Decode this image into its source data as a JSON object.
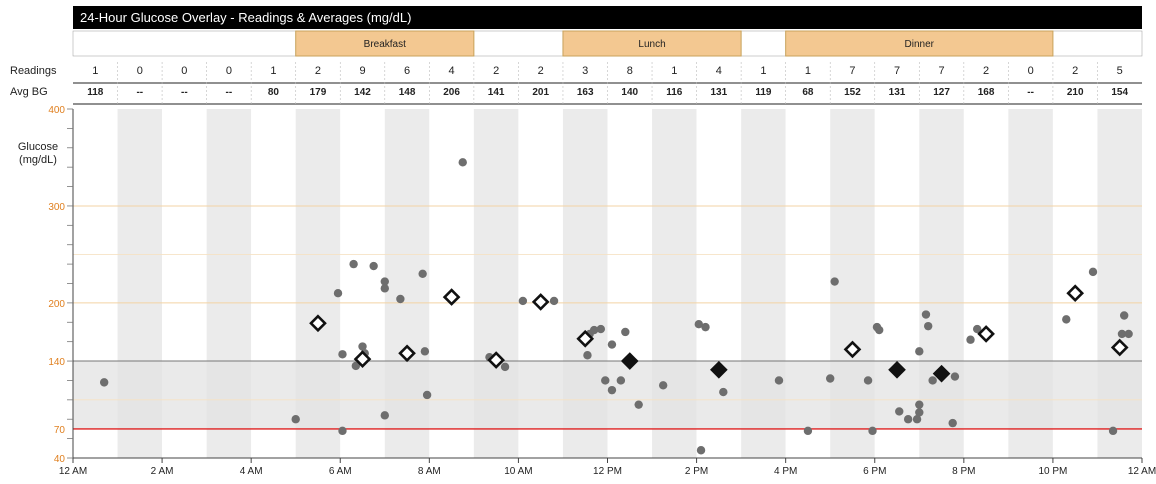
{
  "chart_data": {
    "type": "scatter",
    "title": "24-Hour Glucose Overlay - Readings & Averages (mg/dL)",
    "ylabel": [
      "Glucose",
      "(mg/dL)"
    ],
    "ylim": [
      40,
      400
    ],
    "xlim": [
      0,
      24
    ],
    "y_ticks": [
      "40",
      "70",
      "140",
      "200",
      "300",
      "400"
    ],
    "x_ticks": [
      {
        "hour": 0,
        "label": "12 AM"
      },
      {
        "hour": 2,
        "label": "2 AM"
      },
      {
        "hour": 4,
        "label": "4 AM"
      },
      {
        "hour": 6,
        "label": "6 AM"
      },
      {
        "hour": 8,
        "label": "8 AM"
      },
      {
        "hour": 10,
        "label": "10 AM"
      },
      {
        "hour": 12,
        "label": "12 PM"
      },
      {
        "hour": 14,
        "label": "2 PM"
      },
      {
        "hour": 16,
        "label": "4 PM"
      },
      {
        "hour": 18,
        "label": "6 PM"
      },
      {
        "hour": 20,
        "label": "8 PM"
      },
      {
        "hour": 22,
        "label": "10 PM"
      },
      {
        "hour": 24,
        "label": "12 AM"
      }
    ],
    "meals": [
      {
        "label": "Breakfast",
        "start": 5,
        "end": 9
      },
      {
        "label": "Lunch",
        "start": 11,
        "end": 15
      },
      {
        "label": "Dinner",
        "start": 16,
        "end": 22
      }
    ],
    "target_range": [
      70,
      140
    ],
    "low_threshold": 70,
    "reference_lines": [
      {
        "y": 200,
        "color": "#f3d3a4"
      },
      {
        "y": 300,
        "color": "#f3d3a4"
      }
    ],
    "row_labels": {
      "readings": "Readings",
      "avg_bg": "Avg BG"
    },
    "readings": [
      "1",
      "0",
      "0",
      "0",
      "1",
      "2",
      "9",
      "6",
      "4",
      "2",
      "2",
      "3",
      "8",
      "1",
      "4",
      "1",
      "1",
      "7",
      "7",
      "7",
      "2",
      "0",
      "2",
      "5"
    ],
    "avg_bg": [
      "118",
      "--",
      "--",
      "--",
      "80",
      "179",
      "142",
      "148",
      "206",
      "141",
      "201",
      "163",
      "140",
      "116",
      "131",
      "119",
      "68",
      "152",
      "131",
      "127",
      "168",
      "--",
      "210",
      "154"
    ],
    "averages": [
      {
        "x": 5.5,
        "y": 179
      },
      {
        "x": 6.5,
        "y": 142
      },
      {
        "x": 7.5,
        "y": 148
      },
      {
        "x": 8.5,
        "y": 206
      },
      {
        "x": 9.5,
        "y": 141
      },
      {
        "x": 10.5,
        "y": 201
      },
      {
        "x": 11.5,
        "y": 163
      },
      {
        "x": 12.5,
        "y": 140
      },
      {
        "x": 14.5,
        "y": 131
      },
      {
        "x": 17.5,
        "y": 152
      },
      {
        "x": 18.5,
        "y": 131
      },
      {
        "x": 19.5,
        "y": 127
      },
      {
        "x": 20.5,
        "y": 168
      },
      {
        "x": 22.5,
        "y": 210
      },
      {
        "x": 23.5,
        "y": 154
      }
    ],
    "readings_points": [
      {
        "x": 0.7,
        "y": 118
      },
      {
        "x": 5.0,
        "y": 80
      },
      {
        "x": 5.95,
        "y": 210
      },
      {
        "x": 6.05,
        "y": 147
      },
      {
        "x": 6.05,
        "y": 68
      },
      {
        "x": 6.3,
        "y": 240
      },
      {
        "x": 6.5,
        "y": 155
      },
      {
        "x": 6.55,
        "y": 148
      },
      {
        "x": 6.75,
        "y": 238
      },
      {
        "x": 6.35,
        "y": 135
      },
      {
        "x": 7.0,
        "y": 222
      },
      {
        "x": 7.0,
        "y": 215
      },
      {
        "x": 7.0,
        "y": 84
      },
      {
        "x": 7.35,
        "y": 204
      },
      {
        "x": 7.85,
        "y": 230
      },
      {
        "x": 7.9,
        "y": 150
      },
      {
        "x": 7.95,
        "y": 105
      },
      {
        "x": 8.75,
        "y": 345
      },
      {
        "x": 9.35,
        "y": 144
      },
      {
        "x": 9.7,
        "y": 134
      },
      {
        "x": 10.1,
        "y": 202
      },
      {
        "x": 10.8,
        "y": 202
      },
      {
        "x": 11.6,
        "y": 168
      },
      {
        "x": 11.7,
        "y": 172
      },
      {
        "x": 11.85,
        "y": 173
      },
      {
        "x": 11.55,
        "y": 146
      },
      {
        "x": 11.95,
        "y": 120
      },
      {
        "x": 12.1,
        "y": 110
      },
      {
        "x": 12.3,
        "y": 120
      },
      {
        "x": 12.1,
        "y": 157
      },
      {
        "x": 12.4,
        "y": 170
      },
      {
        "x": 12.7,
        "y": 95
      },
      {
        "x": 13.25,
        "y": 115
      },
      {
        "x": 14.05,
        "y": 178
      },
      {
        "x": 14.2,
        "y": 175
      },
      {
        "x": 14.1,
        "y": 48
      },
      {
        "x": 14.6,
        "y": 108
      },
      {
        "x": 15.85,
        "y": 120
      },
      {
        "x": 16.5,
        "y": 68
      },
      {
        "x": 17.0,
        "y": 122
      },
      {
        "x": 17.1,
        "y": 222
      },
      {
        "x": 17.85,
        "y": 120
      },
      {
        "x": 17.95,
        "y": 68
      },
      {
        "x": 18.1,
        "y": 172
      },
      {
        "x": 18.05,
        "y": 175
      },
      {
        "x": 18.55,
        "y": 88
      },
      {
        "x": 18.75,
        "y": 80
      },
      {
        "x": 18.95,
        "y": 80
      },
      {
        "x": 19.0,
        "y": 95
      },
      {
        "x": 19.15,
        "y": 188
      },
      {
        "x": 19.2,
        "y": 176
      },
      {
        "x": 19.0,
        "y": 150
      },
      {
        "x": 19.0,
        "y": 87
      },
      {
        "x": 19.3,
        "y": 120
      },
      {
        "x": 19.8,
        "y": 124
      },
      {
        "x": 20.15,
        "y": 162
      },
      {
        "x": 20.3,
        "y": 173
      },
      {
        "x": 19.75,
        "y": 76
      },
      {
        "x": 22.3,
        "y": 183
      },
      {
        "x": 22.9,
        "y": 232
      },
      {
        "x": 23.35,
        "y": 68
      },
      {
        "x": 23.6,
        "y": 187
      },
      {
        "x": 23.55,
        "y": 168
      },
      {
        "x": 23.7,
        "y": 168
      }
    ]
  },
  "colors": {
    "title_bar": "#000000",
    "meal_band": "#f3c891",
    "meal_border": "#c8a25a",
    "shade_band": "#ebebeb",
    "target_band": "#e3e3e3",
    "low_line": "#e02020",
    "point": "#6e6e6e",
    "tick_label": "#e08020"
  }
}
